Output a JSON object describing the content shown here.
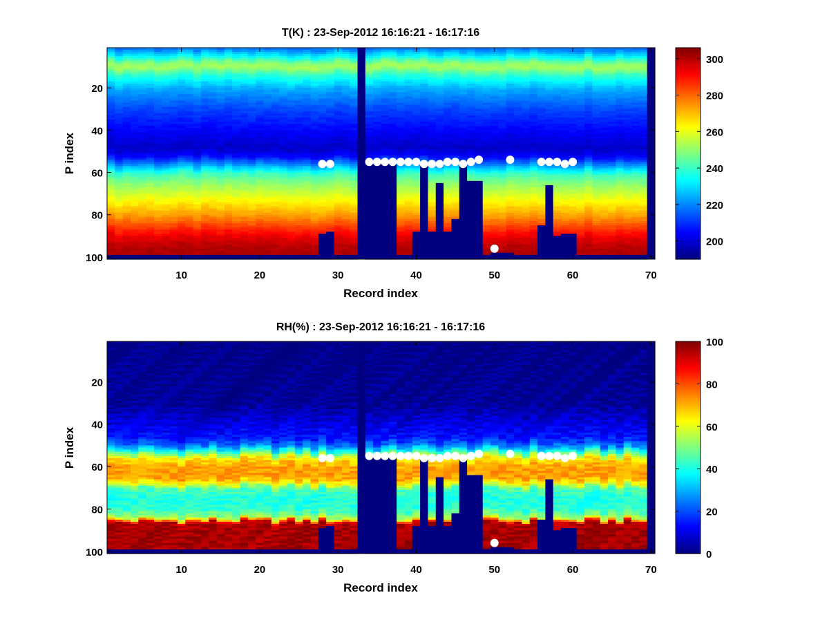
{
  "chart_data": [
    {
      "type": "heatmap",
      "title": "T(K) : 23-Sep-2012 16:16:21 - 16:17:16",
      "xlabel": "Record index",
      "ylabel": "P index",
      "xlim": [
        1,
        71
      ],
      "ylim": [
        100,
        1
      ],
      "y_reversed": true,
      "x_ticks": [
        10,
        20,
        30,
        40,
        50,
        60,
        70
      ],
      "y_ticks": [
        20,
        40,
        60,
        80,
        100
      ],
      "colorbar": {
        "label": "",
        "range": [
          190,
          306
        ],
        "ticks": [
          200,
          220,
          240,
          260,
          280,
          300
        ]
      },
      "colormap": "jet",
      "field": "temperature",
      "profile_model": {
        "p_index": [
          1,
          5,
          8,
          10,
          13,
          20,
          30,
          40,
          48,
          52,
          56,
          60,
          65,
          70,
          75,
          80,
          85,
          90,
          95,
          100
        ],
        "values": [
          218,
          235,
          250,
          252,
          240,
          224,
          212,
          204,
          198,
          205,
          222,
          240,
          250,
          258,
          266,
          274,
          284,
          294,
          300,
          301
        ]
      },
      "missing_records": [
        33,
        70
      ],
      "valid_below_index_by_record": {
        "28": 89,
        "29": 88,
        "34": 55,
        "35": 55,
        "36": 55,
        "37": 55,
        "40": 88,
        "41": 56,
        "42": 88,
        "43": 65,
        "44": 88,
        "45": 82,
        "46": 56,
        "47": 64,
        "48": 64,
        "50": 98,
        "51": 98,
        "52": 98,
        "56": 85,
        "57": 66,
        "58": 90,
        "59": 89,
        "60": 89
      },
      "markers": [
        {
          "x": 28,
          "y": 56
        },
        {
          "x": 29,
          "y": 56
        },
        {
          "x": 34,
          "y": 55
        },
        {
          "x": 35,
          "y": 55
        },
        {
          "x": 36,
          "y": 55
        },
        {
          "x": 37,
          "y": 55
        },
        {
          "x": 38,
          "y": 55
        },
        {
          "x": 39,
          "y": 55
        },
        {
          "x": 40,
          "y": 55
        },
        {
          "x": 41,
          "y": 56
        },
        {
          "x": 42,
          "y": 56
        },
        {
          "x": 43,
          "y": 56
        },
        {
          "x": 44,
          "y": 55
        },
        {
          "x": 45,
          "y": 55
        },
        {
          "x": 46,
          "y": 56
        },
        {
          "x": 47,
          "y": 55
        },
        {
          "x": 48,
          "y": 54
        },
        {
          "x": 50,
          "y": 96
        },
        {
          "x": 52,
          "y": 54
        },
        {
          "x": 56,
          "y": 55
        },
        {
          "x": 57,
          "y": 55
        },
        {
          "x": 58,
          "y": 55
        },
        {
          "x": 59,
          "y": 56
        },
        {
          "x": 60,
          "y": 55
        }
      ]
    },
    {
      "type": "heatmap",
      "title": "RH(%) : 23-Sep-2012 16:16:21 - 16:17:16",
      "xlabel": "Record index",
      "ylabel": "P index",
      "xlim": [
        1,
        71
      ],
      "ylim": [
        100,
        1
      ],
      "y_reversed": true,
      "x_ticks": [
        10,
        20,
        30,
        40,
        50,
        60,
        70
      ],
      "y_ticks": [
        20,
        40,
        60,
        80,
        100
      ],
      "colorbar": {
        "label": "",
        "range": [
          0,
          100
        ],
        "ticks": [
          0,
          20,
          40,
          60,
          80,
          100
        ]
      },
      "colormap": "jet",
      "field": "humidity",
      "profile_model": {
        "p_index": [
          1,
          30,
          40,
          46,
          50,
          53,
          56,
          60,
          65,
          68,
          70,
          75,
          80,
          84,
          86,
          90,
          100
        ],
        "values": [
          0,
          2,
          10,
          14,
          25,
          45,
          65,
          72,
          72,
          60,
          45,
          40,
          42,
          55,
          95,
          96,
          96
        ]
      },
      "missing_records": [
        33,
        70
      ],
      "valid_below_index_by_record": {
        "28": 89,
        "29": 88,
        "34": 55,
        "35": 55,
        "36": 55,
        "37": 55,
        "40": 88,
        "41": 56,
        "42": 88,
        "43": 65,
        "44": 88,
        "45": 82,
        "46": 56,
        "47": 64,
        "48": 64,
        "50": 98,
        "51": 98,
        "52": 98,
        "56": 85,
        "57": 66,
        "58": 90,
        "59": 89,
        "60": 89
      },
      "markers": [
        {
          "x": 28,
          "y": 56
        },
        {
          "x": 29,
          "y": 56
        },
        {
          "x": 34,
          "y": 55
        },
        {
          "x": 35,
          "y": 55
        },
        {
          "x": 36,
          "y": 55
        },
        {
          "x": 37,
          "y": 55
        },
        {
          "x": 38,
          "y": 55
        },
        {
          "x": 39,
          "y": 55
        },
        {
          "x": 40,
          "y": 55
        },
        {
          "x": 41,
          "y": 56
        },
        {
          "x": 42,
          "y": 56
        },
        {
          "x": 43,
          "y": 56
        },
        {
          "x": 44,
          "y": 55
        },
        {
          "x": 45,
          "y": 55
        },
        {
          "x": 46,
          "y": 56
        },
        {
          "x": 47,
          "y": 55
        },
        {
          "x": 48,
          "y": 54
        },
        {
          "x": 50,
          "y": 96
        },
        {
          "x": 52,
          "y": 54
        },
        {
          "x": 56,
          "y": 55
        },
        {
          "x": 57,
          "y": 55
        },
        {
          "x": 58,
          "y": 55
        },
        {
          "x": 59,
          "y": 56
        },
        {
          "x": 60,
          "y": 55
        }
      ]
    }
  ]
}
